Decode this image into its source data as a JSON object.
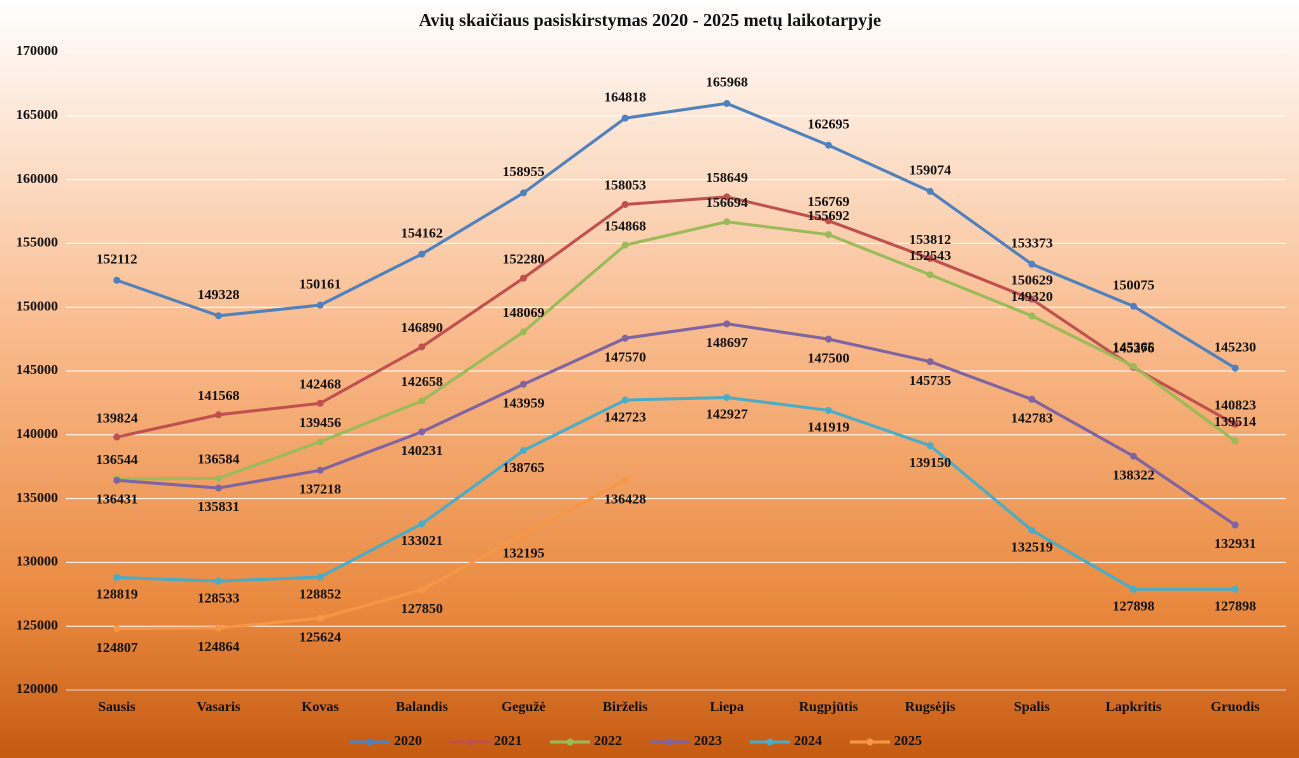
{
  "chart_data": {
    "type": "line",
    "title": "Avių skaičiaus pasiskirstymas  2020 - 2025 metų laikotarpyje",
    "categories": [
      "Sausis",
      "Vasaris",
      "Kovas",
      "Balandis",
      "Gegužė",
      "Birželis",
      "Liepa",
      "Rugpjūtis",
      "Rugsėjis",
      "Spalis",
      "Lapkritis",
      "Gruodis"
    ],
    "series": [
      {
        "name": "2020",
        "color": "#4f81bd",
        "values": [
          152112,
          149328,
          150161,
          154162,
          158955,
          164818,
          165968,
          162695,
          159074,
          153373,
          150075,
          145230
        ]
      },
      {
        "name": "2021",
        "color": "#c0504d",
        "values": [
          139824,
          141568,
          142468,
          146890,
          152280,
          158053,
          158649,
          156769,
          153812,
          150629,
          145276,
          140823
        ]
      },
      {
        "name": "2022",
        "color": "#9bbb59",
        "values": [
          136544,
          136584,
          139456,
          142658,
          148069,
          154868,
          156694,
          155692,
          152543,
          149320,
          145365,
          139514
        ]
      },
      {
        "name": "2023",
        "color": "#8064a2",
        "values": [
          136431,
          135831,
          137218,
          140231,
          143959,
          147570,
          148697,
          147500,
          145735,
          142783,
          138322,
          132931
        ]
      },
      {
        "name": "2024",
        "color": "#4bacc6",
        "values": [
          128819,
          128533,
          128852,
          133021,
          138765,
          142723,
          142927,
          141919,
          139150,
          132519,
          127898,
          127898
        ]
      },
      {
        "name": "2025",
        "color": "#f79646",
        "values": [
          124807,
          124864,
          125624,
          127850,
          132195,
          136428,
          null,
          null,
          null,
          null,
          null,
          null
        ]
      }
    ],
    "ylim": [
      120000,
      170000
    ],
    "yticks": [
      120000,
      125000,
      130000,
      135000,
      140000,
      145000,
      150000,
      155000,
      160000,
      165000,
      170000
    ],
    "grid": true,
    "legend": "bottom"
  }
}
